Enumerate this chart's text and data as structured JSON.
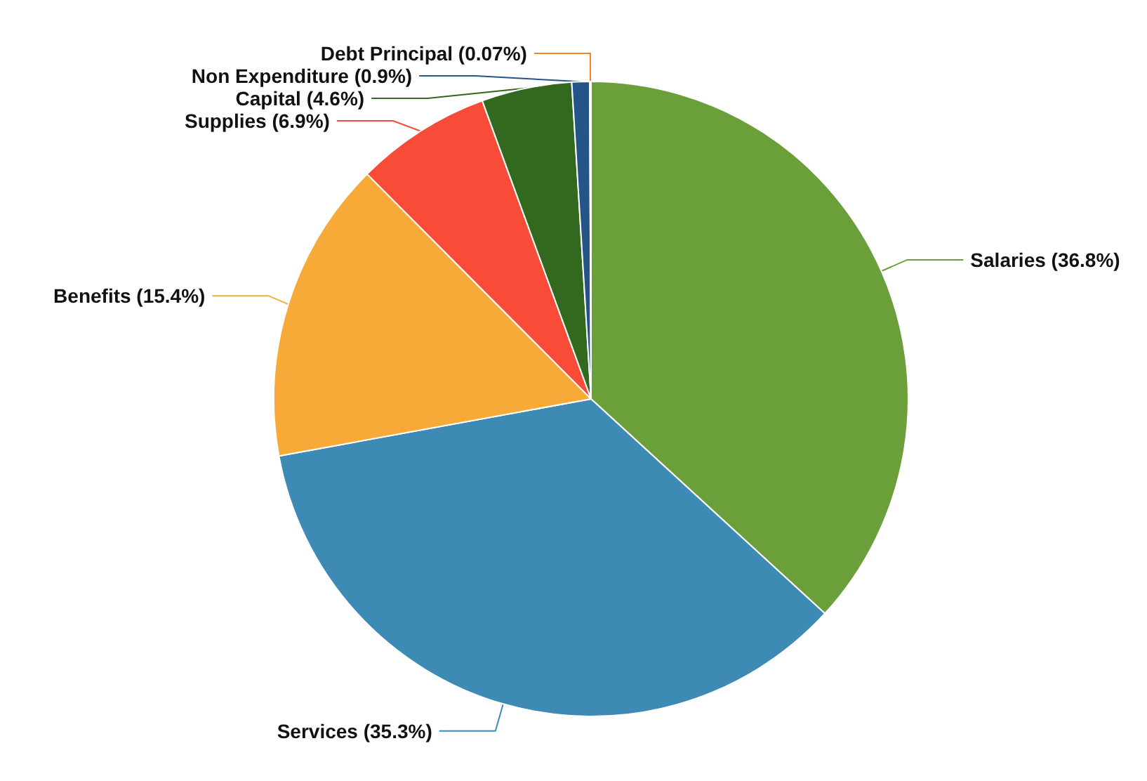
{
  "chart_data": {
    "type": "pie",
    "categories": [
      "Salaries",
      "Services",
      "Benefits",
      "Supplies",
      "Capital",
      "Non Expenditure",
      "Debt Principal"
    ],
    "values": [
      36.8,
      35.3,
      15.4,
      6.9,
      4.6,
      0.9,
      0.07
    ],
    "value_labels": [
      "(36.8%)",
      "(35.3%)",
      "(15.4%)",
      "(6.9%)",
      "(4.6%)",
      "(0.9%)",
      "(0.07%)"
    ],
    "colors": [
      "#6a9f3a",
      "#3d8ab5",
      "#f8aa38",
      "#f84c38",
      "#33691e",
      "#245488",
      "#f58025"
    ],
    "legend": false
  }
}
